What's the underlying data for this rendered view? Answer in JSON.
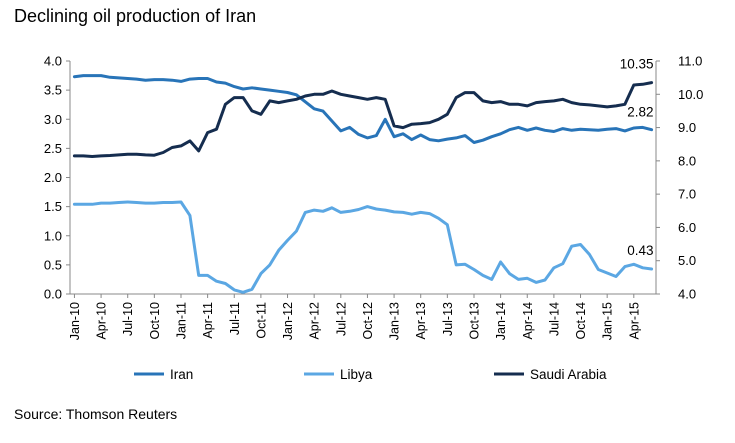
{
  "title": "Declining oil production of Iran",
  "source": "Source: Thomson Reuters",
  "chart_data": {
    "type": "line",
    "x": [
      "Jan-10",
      "Feb-10",
      "Mar-10",
      "Apr-10",
      "May-10",
      "Jun-10",
      "Jul-10",
      "Aug-10",
      "Sep-10",
      "Oct-10",
      "Nov-10",
      "Dec-10",
      "Jan-11",
      "Feb-11",
      "Mar-11",
      "Apr-11",
      "May-11",
      "Jun-11",
      "Jul-11",
      "Aug-11",
      "Sep-11",
      "Oct-11",
      "Nov-11",
      "Dec-11",
      "Jan-12",
      "Feb-12",
      "Mar-12",
      "Apr-12",
      "May-12",
      "Jun-12",
      "Jul-12",
      "Aug-12",
      "Sep-12",
      "Oct-12",
      "Nov-12",
      "Dec-12",
      "Jan-13",
      "Feb-13",
      "Mar-13",
      "Apr-13",
      "May-13",
      "Jun-13",
      "Jul-13",
      "Aug-13",
      "Sep-13",
      "Oct-13",
      "Nov-13",
      "Dec-13",
      "Jan-14",
      "Feb-14",
      "Mar-14",
      "Apr-14",
      "May-14",
      "Jun-14",
      "Jul-14",
      "Aug-14",
      "Sep-14",
      "Oct-14",
      "Nov-14",
      "Dec-14",
      "Jan-15",
      "Feb-15",
      "Mar-15",
      "Apr-15",
      "May-15",
      "Jun-15"
    ],
    "x_tick_labels": [
      "Jan-10",
      "Apr-10",
      "Jul-10",
      "Oct-10",
      "Jan-11",
      "Apr-11",
      "Jul-11",
      "Oct-11",
      "Jan-12",
      "Apr-12",
      "Jul-12",
      "Oct-12",
      "Jan-13",
      "Apr-13",
      "Jul-13",
      "Oct-13",
      "Jan-14",
      "Apr-14",
      "Jul-14",
      "Oct-14",
      "Jan-15",
      "Apr-15"
    ],
    "left_axis": {
      "ylim": [
        0.0,
        4.0
      ],
      "ticks": [
        "0.0",
        "0.5",
        "1.0",
        "1.5",
        "2.0",
        "2.5",
        "3.0",
        "3.5",
        "4.0"
      ]
    },
    "right_axis": {
      "ylim": [
        4.0,
        11.0
      ],
      "ticks": [
        "4.0",
        "5.0",
        "6.0",
        "7.0",
        "8.0",
        "9.0",
        "10.0",
        "11.0"
      ]
    },
    "grid": false,
    "legend": "bottom",
    "series": [
      {
        "name": "Iran",
        "axis": "left",
        "color": "#2874b8",
        "values": [
          3.73,
          3.75,
          3.75,
          3.75,
          3.72,
          3.71,
          3.7,
          3.69,
          3.67,
          3.68,
          3.68,
          3.67,
          3.65,
          3.69,
          3.7,
          3.7,
          3.64,
          3.62,
          3.56,
          3.52,
          3.54,
          3.52,
          3.5,
          3.48,
          3.46,
          3.42,
          3.3,
          3.18,
          3.14,
          2.97,
          2.8,
          2.86,
          2.74,
          2.68,
          2.72,
          3.0,
          2.7,
          2.75,
          2.65,
          2.73,
          2.65,
          2.63,
          2.66,
          2.68,
          2.72,
          2.6,
          2.64,
          2.7,
          2.75,
          2.82,
          2.86,
          2.81,
          2.85,
          2.81,
          2.79,
          2.84,
          2.81,
          2.83,
          2.82,
          2.81,
          2.83,
          2.84,
          2.8,
          2.85,
          2.86,
          2.82
        ]
      },
      {
        "name": "Libya",
        "axis": "left",
        "color": "#5ba7e3",
        "values": [
          1.54,
          1.54,
          1.54,
          1.56,
          1.56,
          1.57,
          1.58,
          1.57,
          1.56,
          1.56,
          1.57,
          1.57,
          1.58,
          1.35,
          0.32,
          0.32,
          0.22,
          0.18,
          0.07,
          0.03,
          0.08,
          0.35,
          0.5,
          0.75,
          0.92,
          1.08,
          1.4,
          1.44,
          1.42,
          1.48,
          1.4,
          1.42,
          1.45,
          1.5,
          1.46,
          1.44,
          1.41,
          1.4,
          1.37,
          1.4,
          1.38,
          1.3,
          1.19,
          0.5,
          0.51,
          0.42,
          0.32,
          0.25,
          0.55,
          0.35,
          0.25,
          0.27,
          0.2,
          0.24,
          0.45,
          0.52,
          0.82,
          0.85,
          0.68,
          0.42,
          0.36,
          0.3,
          0.47,
          0.51,
          0.45,
          0.43
        ]
      },
      {
        "name": "Saudi Arabia",
        "axis": "right",
        "color": "#152d4f",
        "values": [
          8.15,
          8.15,
          8.13,
          8.15,
          8.16,
          8.18,
          8.2,
          8.2,
          8.18,
          8.17,
          8.25,
          8.4,
          8.45,
          8.6,
          8.3,
          8.85,
          8.95,
          9.7,
          9.9,
          9.9,
          9.5,
          9.4,
          9.8,
          9.75,
          9.8,
          9.85,
          9.95,
          10.0,
          10.0,
          10.1,
          10.0,
          9.95,
          9.9,
          9.85,
          9.9,
          9.85,
          9.05,
          9.0,
          9.1,
          9.12,
          9.15,
          9.25,
          9.4,
          9.9,
          10.05,
          10.05,
          9.8,
          9.75,
          9.78,
          9.7,
          9.7,
          9.65,
          9.75,
          9.78,
          9.8,
          9.85,
          9.75,
          9.7,
          9.68,
          9.65,
          9.62,
          9.65,
          9.7,
          10.28,
          10.3,
          10.35
        ]
      }
    ],
    "annotations": [
      {
        "text": "10.35",
        "series": "Saudi Arabia"
      },
      {
        "text": "2.82",
        "series": "Iran"
      },
      {
        "text": "0.43",
        "series": "Libya"
      }
    ]
  }
}
